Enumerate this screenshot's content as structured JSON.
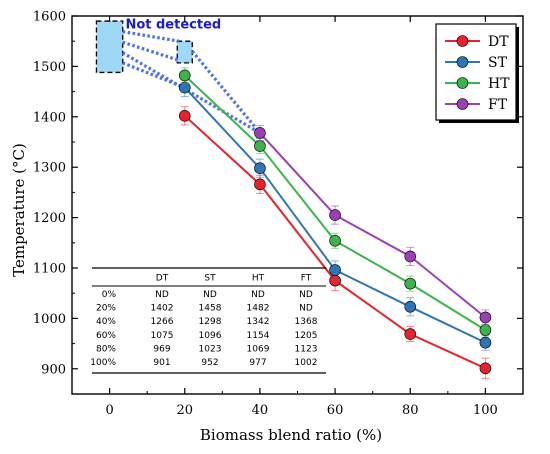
{
  "chart_data": {
    "type": "line",
    "title": "",
    "xlabel": "Biomass blend ratio (%)",
    "ylabel": "Temperature (°C)",
    "xlim": [
      -10,
      110
    ],
    "ylim": [
      850,
      1600
    ],
    "x_ticks": [
      "0",
      "20",
      "40",
      "60",
      "80",
      "100"
    ],
    "y_ticks": [
      "900",
      "1000",
      "1100",
      "1200",
      "1300",
      "1400",
      "1500",
      "1600"
    ],
    "x": [
      20,
      40,
      60,
      80,
      100
    ],
    "series": [
      {
        "name": "DT",
        "color": "#e8232b",
        "values": [
          1402,
          1266,
          1075,
          969,
          901
        ],
        "errors": [
          18,
          18,
          20,
          15,
          20
        ]
      },
      {
        "name": "ST",
        "color": "#2e75b6",
        "values": [
          1458,
          1298,
          1096,
          1023,
          952
        ],
        "errors": [
          18,
          18,
          18,
          18,
          15
        ]
      },
      {
        "name": "HT",
        "color": "#3cb44b",
        "values": [
          1482,
          1342,
          1154,
          1069,
          977
        ],
        "errors": [
          15,
          15,
          15,
          15,
          12
        ]
      },
      {
        "name": "FT",
        "color": "#9b3fb5",
        "values": [
          null,
          1368,
          1205,
          1123,
          1002
        ],
        "errors": [
          0,
          15,
          18,
          18,
          15
        ]
      }
    ],
    "legend_position": "top-right",
    "annotation": {
      "text": "Not detected",
      "color": "#1a1ad8"
    },
    "table": {
      "headers": [
        "",
        "DT",
        "ST",
        "HT",
        "FT"
      ],
      "rows": [
        [
          "0%",
          "ND",
          "ND",
          "ND",
          "ND"
        ],
        [
          "20%",
          "1402",
          "1458",
          "1482",
          "ND"
        ],
        [
          "40%",
          "1266",
          "1298",
          "1342",
          "1368"
        ],
        [
          "60%",
          "1075",
          "1096",
          "1154",
          "1205"
        ],
        [
          "80%",
          "969",
          "1023",
          "1069",
          "1123"
        ],
        [
          "100%",
          "901",
          "952",
          "977",
          "1002"
        ]
      ]
    }
  }
}
